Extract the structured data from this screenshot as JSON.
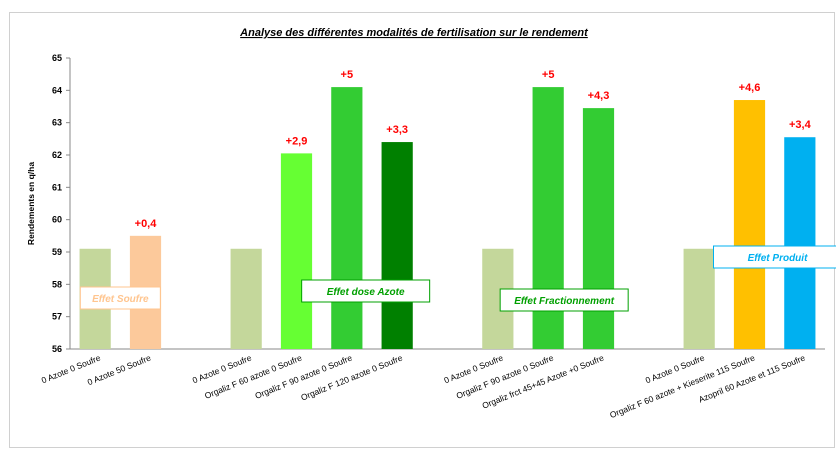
{
  "chart_data": {
    "type": "bar",
    "title": "Analyse des  différentes  modalités de fertilisation  sur le rendement",
    "ylabel": "Rendements en q/ha",
    "xlabel": "",
    "ylim": [
      56,
      65
    ],
    "yticks": [
      56,
      57,
      58,
      59,
      60,
      61,
      62,
      63,
      64,
      65
    ],
    "grid": false,
    "legend": "none",
    "groups": [
      {
        "annotation": "Effet Soufre",
        "annotation_color": "#ffc58f",
        "bars": [
          {
            "category": "0 Azote 0 Soufre",
            "value": 59.1,
            "label": "",
            "color": "#c4d79b"
          },
          {
            "category": "0 Azote 50 Soufre",
            "value": 59.5,
            "label": "+0,4",
            "color": "#fcc99b"
          }
        ]
      },
      {
        "annotation": "Effet dose Azote",
        "annotation_color": "#00a000",
        "bars": [
          {
            "category": "0 Azote 0 Soufre",
            "value": 59.1,
            "label": "",
            "color": "#c4d79b"
          },
          {
            "category": "Orgaliz F 60 azote 0 Soufre",
            "value": 62.05,
            "label": "+2,9",
            "color": "#66ff33"
          },
          {
            "category": "Orgaliz F 90 azote  0 Soufre",
            "value": 64.1,
            "label": "+5",
            "color": "#33cc33"
          },
          {
            "category": "Orgaliz F 120 azote  0 Soufre",
            "value": 62.4,
            "label": "+3,3",
            "color": "#008000"
          }
        ]
      },
      {
        "annotation": "Effet Fractionnement",
        "annotation_color": "#00a000",
        "bars": [
          {
            "category": "0 Azote 0 Soufre",
            "value": 59.1,
            "label": "",
            "color": "#c4d79b"
          },
          {
            "category": "Orgaliz F 90 azote 0 Soufre",
            "value": 64.1,
            "label": "+5",
            "color": "#33cc33"
          },
          {
            "category": "Orgaliz frct 45+45 Azote +0 Soufre",
            "value": 63.45,
            "label": "+4,3",
            "color": "#33cc33"
          }
        ]
      },
      {
        "annotation": "Effet Produit",
        "annotation_color": "#00b0f0",
        "bars": [
          {
            "category": "0 Azote 0 Soufre",
            "value": 59.1,
            "label": "",
            "color": "#c4d79b"
          },
          {
            "category": "Orgaliz F 60 azote + Kieserite 115 Soufre",
            "value": 63.7,
            "label": "+4,6",
            "color": "#ffc000"
          },
          {
            "category": "Azopril 60 Azote et 115 Soufre",
            "value": 62.55,
            "label": "+3,4",
            "color": "#00b0f0"
          }
        ]
      }
    ]
  }
}
